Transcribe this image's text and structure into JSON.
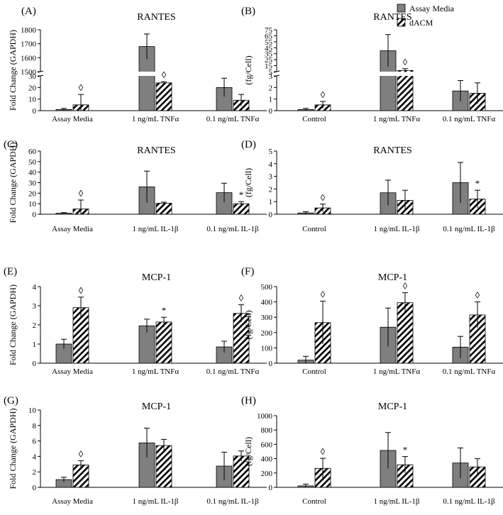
{
  "legend": {
    "assay": {
      "label": "Assay Media",
      "color": "#7f7f7f"
    },
    "dacm": {
      "label": "dACM"
    }
  },
  "chart_data": [
    {
      "id": "A",
      "type": "bar",
      "panel_label": "(A)",
      "title": "RANTES",
      "ylabel": "Fold Change (GAPDH)",
      "broken_axis": true,
      "categories": [
        "Assay Media",
        "1 ng/mL TNFα",
        "0.1 ng/mL TNFα"
      ],
      "lower_ticks": [
        "0",
        "10",
        "20",
        "30"
      ],
      "lower_ylim": [
        0,
        30
      ],
      "upper_ticks": [
        "1500",
        "1600",
        "1700",
        "1800"
      ],
      "upper_ylim": [
        1500,
        1800
      ],
      "series": [
        {
          "name": "Assay Media",
          "values": [
            1,
            1680,
            20
          ],
          "errors": [
            1,
            90,
            8
          ]
        },
        {
          "name": "dACM",
          "values": [
            5,
            24,
            9
          ],
          "errors": [
            9,
            1,
            5
          ]
        }
      ],
      "markers": [
        {
          "series": 1,
          "index": 0,
          "symbol": "◊"
        },
        {
          "series": 1,
          "index": 1,
          "symbol": "◊"
        }
      ]
    },
    {
      "id": "B",
      "type": "bar",
      "panel_label": "(B)",
      "title": "RANTES",
      "ylabel": "(fg/Cell)",
      "broken_axis": true,
      "categories": [
        "Control",
        "1 ng/mL TNFα",
        "0.1 ng/mL TNFα"
      ],
      "lower_ticks": [
        "0",
        "1",
        "2",
        "3"
      ],
      "lower_ylim": [
        0,
        3
      ],
      "upper_ticks": [
        "5",
        "15",
        "25",
        "35",
        "45",
        "55",
        "65",
        "75"
      ],
      "upper_ylim": [
        5,
        75
      ],
      "series": [
        {
          "name": "Assay Media",
          "values": [
            0.1,
            40,
            1.7
          ],
          "errors": [
            0.1,
            27,
            0.9
          ]
        },
        {
          "name": "dACM",
          "values": [
            0.5,
            7,
            1.5
          ],
          "errors": [
            0.3,
            3,
            0.9
          ]
        }
      ],
      "markers": [
        {
          "series": 1,
          "index": 0,
          "symbol": "◊"
        },
        {
          "series": 1,
          "index": 1,
          "symbol": "◊"
        }
      ]
    },
    {
      "id": "C",
      "type": "bar",
      "panel_label": "(C)",
      "title": "RANTES",
      "ylabel": "Fold Change (GAPDH)",
      "categories": [
        "Assay Media",
        "1 ng/mL IL-1β",
        "0.1 ng/mL IL-1β"
      ],
      "ticks": [
        "0",
        "10",
        "20",
        "30",
        "40",
        "50",
        "60"
      ],
      "ylim": [
        0,
        60
      ],
      "series": [
        {
          "name": "Assay Media",
          "values": [
            1,
            26,
            20.5
          ],
          "errors": [
            0.5,
            15,
            9
          ]
        },
        {
          "name": "dACM",
          "values": [
            5,
            10.5,
            10
          ],
          "errors": [
            8.5,
            1,
            2
          ]
        }
      ],
      "markers": [
        {
          "series": 1,
          "index": 0,
          "symbol": "◊"
        },
        {
          "series": 1,
          "index": 2,
          "symbol": "*"
        }
      ]
    },
    {
      "id": "D",
      "type": "bar",
      "panel_label": "(D)",
      "title": "RANTES",
      "ylabel": "(fg/Cell)",
      "categories": [
        "Control",
        "1 ng/mL IL-1β",
        "0.1 ng/mL IL-1β"
      ],
      "ticks": [
        "0",
        "1",
        "2",
        "3",
        "4",
        "5"
      ],
      "ylim": [
        0,
        5
      ],
      "series": [
        {
          "name": "Assay Media",
          "values": [
            0.1,
            1.7,
            2.5
          ],
          "errors": [
            0.1,
            1.0,
            1.6
          ]
        },
        {
          "name": "dACM",
          "values": [
            0.5,
            1.1,
            1.2
          ],
          "errors": [
            0.3,
            0.8,
            0.7
          ]
        }
      ],
      "markers": [
        {
          "series": 1,
          "index": 0,
          "symbol": "◊"
        },
        {
          "series": 1,
          "index": 2,
          "symbol": "*"
        }
      ]
    },
    {
      "id": "E",
      "type": "bar",
      "panel_label": "(E)",
      "title": "MCP-1",
      "ylabel": "Fold Change (GAPDH)",
      "categories": [
        "Assay Media",
        "1 ng/mL TNFα",
        "0.1 ng/mL TNFα"
      ],
      "ticks": [
        "0",
        "1",
        "2",
        "3",
        "4"
      ],
      "ylim": [
        0,
        4
      ],
      "series": [
        {
          "name": "Assay Media",
          "values": [
            1.0,
            1.95,
            0.85
          ],
          "errors": [
            0.25,
            0.35,
            0.3
          ]
        },
        {
          "name": "dACM",
          "values": [
            2.9,
            2.15,
            2.6
          ],
          "errors": [
            0.55,
            0.25,
            0.45
          ]
        }
      ],
      "markers": [
        {
          "series": 1,
          "index": 0,
          "symbol": "◊"
        },
        {
          "series": 1,
          "index": 1,
          "symbol": "*"
        },
        {
          "series": 1,
          "index": 2,
          "symbol": "◊"
        }
      ]
    },
    {
      "id": "F",
      "type": "bar",
      "panel_label": "(F)",
      "title": "MCP-1",
      "ylabel": "(fg/Cell)",
      "categories": [
        "Control",
        "1 ng/mL TNFα",
        "0.1 ng/mL TNFα"
      ],
      "ticks": [
        "0",
        "100",
        "200",
        "300",
        "400",
        "500"
      ],
      "ylim": [
        0,
        500
      ],
      "series": [
        {
          "name": "Assay Media",
          "values": [
            20,
            235,
            105
          ],
          "errors": [
            25,
            125,
            70
          ]
        },
        {
          "name": "dACM",
          "values": [
            265,
            395,
            315
          ],
          "errors": [
            140,
            65,
            85
          ]
        }
      ],
      "markers": [
        {
          "series": 1,
          "index": 0,
          "symbol": "◊"
        },
        {
          "series": 1,
          "index": 1,
          "symbol": "◊"
        },
        {
          "series": 1,
          "index": 2,
          "symbol": "◊"
        }
      ]
    },
    {
      "id": "G",
      "type": "bar",
      "panel_label": "(G)",
      "title": "MCP-1",
      "ylabel": "Fold Change (GAPDH)",
      "categories": [
        "Assay Media",
        "1 ng/mL IL-1β",
        "0.1 ng/mL IL-1β"
      ],
      "ticks": [
        "0",
        "2",
        "4",
        "6",
        "8",
        "10"
      ],
      "ylim": [
        0,
        10
      ],
      "series": [
        {
          "name": "Assay Media",
          "values": [
            1.0,
            5.75,
            2.75
          ],
          "errors": [
            0.3,
            1.9,
            1.8
          ]
        },
        {
          "name": "dACM",
          "values": [
            2.9,
            5.4,
            4.05
          ],
          "errors": [
            0.55,
            0.8,
            0.65
          ]
        }
      ],
      "markers": [
        {
          "series": 1,
          "index": 0,
          "symbol": "◊"
        }
      ]
    },
    {
      "id": "H",
      "type": "bar",
      "panel_label": "(H)",
      "title": "MCP-1",
      "ylabel": "(fg/Cell)",
      "categories": [
        "Control",
        "1 ng/mL IL-1β",
        "0.1 ng/mL IL-1β"
      ],
      "ticks": [
        "0",
        "200",
        "400",
        "600",
        "800",
        "1000"
      ],
      "ylim": [
        0,
        1000
      ],
      "series": [
        {
          "name": "Assay Media",
          "values": [
            20,
            515,
            340
          ],
          "errors": [
            25,
            250,
            210
          ]
        },
        {
          "name": "dACM",
          "values": [
            265,
            315,
            285
          ],
          "errors": [
            140,
            115,
            115
          ]
        }
      ],
      "markers": [
        {
          "series": 1,
          "index": 0,
          "symbol": "◊"
        },
        {
          "series": 1,
          "index": 1,
          "symbol": "*"
        }
      ]
    }
  ]
}
